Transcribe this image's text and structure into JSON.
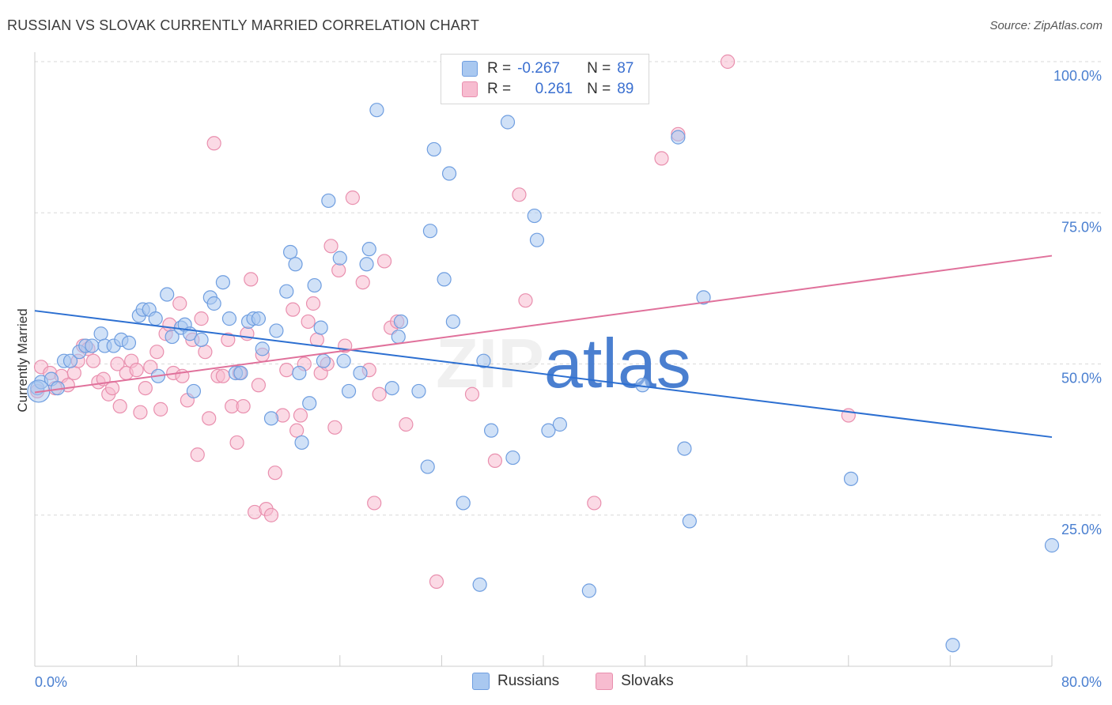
{
  "title": "RUSSIAN VS SLOVAK CURRENTLY MARRIED CORRELATION CHART",
  "source": "Source: ZipAtlas.com",
  "watermark": "ZIPatlas",
  "legend": {
    "russians": {
      "r_label": "R =",
      "r_value": "-0.267",
      "n_label": "N =",
      "n_value": "87"
    },
    "slovaks": {
      "r_label": "R =",
      "r_value": "0.261",
      "n_label": "N =",
      "n_value": "89"
    }
  },
  "colors": {
    "russians_fill": "#a9c8f0",
    "russians_stroke": "#6f9ee0",
    "russians_line": "#2c6fd1",
    "slovaks_fill": "#f7bcd0",
    "slovaks_stroke": "#e98fae",
    "slovaks_line": "#e0719b",
    "tick_text": "#4a7fd0"
  },
  "chart_data": {
    "type": "scatter",
    "xlabel": "",
    "ylabel": "Currently Married",
    "xlim": [
      0,
      80
    ],
    "ylim": [
      0,
      100
    ],
    "x_tick_labels": [
      "0.0%",
      "80.0%"
    ],
    "y_tick_labels": [
      "100.0%",
      "75.0%",
      "50.0%",
      "25.0%"
    ],
    "y_tick_values": [
      100,
      75,
      50,
      25
    ],
    "grid": "horizontal dashed",
    "legend_position": "top-center and bottom",
    "series": [
      {
        "name": "Russians",
        "trend": {
          "x": [
            0,
            80
          ],
          "y": [
            58.8,
            37.9
          ]
        },
        "points": [
          [
            0.2,
            46
          ],
          [
            0.5,
            47
          ],
          [
            1.3,
            47.5
          ],
          [
            1.8,
            46
          ],
          [
            2.3,
            50.5
          ],
          [
            2.8,
            50.5
          ],
          [
            3.5,
            52
          ],
          [
            4.0,
            53
          ],
          [
            4.5,
            53
          ],
          [
            5.2,
            55
          ],
          [
            5.5,
            53
          ],
          [
            6.2,
            53
          ],
          [
            6.8,
            54
          ],
          [
            7.4,
            53.5
          ],
          [
            8.2,
            58
          ],
          [
            8.5,
            59
          ],
          [
            9.0,
            59
          ],
          [
            9.5,
            57.5
          ],
          [
            9.7,
            48
          ],
          [
            10.4,
            61.5
          ],
          [
            10.8,
            54.5
          ],
          [
            11.5,
            56
          ],
          [
            11.8,
            56.5
          ],
          [
            12.2,
            55
          ],
          [
            12.5,
            45.5
          ],
          [
            13.1,
            54
          ],
          [
            13.8,
            61
          ],
          [
            14.1,
            60
          ],
          [
            14.8,
            63.5
          ],
          [
            15.3,
            57.5
          ],
          [
            15.8,
            48.5
          ],
          [
            16.2,
            48.5
          ],
          [
            16.8,
            57
          ],
          [
            17.2,
            57.5
          ],
          [
            17.6,
            57.5
          ],
          [
            17.9,
            52.5
          ],
          [
            18.6,
            41
          ],
          [
            19.0,
            55.5
          ],
          [
            19.8,
            62
          ],
          [
            20.1,
            68.5
          ],
          [
            20.5,
            66.5
          ],
          [
            20.8,
            48.5
          ],
          [
            21.0,
            37
          ],
          [
            21.6,
            43.5
          ],
          [
            22.0,
            63
          ],
          [
            22.5,
            56
          ],
          [
            22.7,
            50.5
          ],
          [
            23.1,
            77
          ],
          [
            24.0,
            67.5
          ],
          [
            24.3,
            50.5
          ],
          [
            24.7,
            45.5
          ],
          [
            25.6,
            48.5
          ],
          [
            26.1,
            66.5
          ],
          [
            26.3,
            69
          ],
          [
            26.9,
            92
          ],
          [
            28.1,
            46
          ],
          [
            28.6,
            54.5
          ],
          [
            28.8,
            57
          ],
          [
            30.2,
            45.5
          ],
          [
            31.1,
            72
          ],
          [
            30.9,
            33
          ],
          [
            31.4,
            85.5
          ],
          [
            32.2,
            64
          ],
          [
            32.6,
            81.5
          ],
          [
            32.9,
            57
          ],
          [
            33.7,
            27
          ],
          [
            35.0,
            13.5
          ],
          [
            35.3,
            50.5
          ],
          [
            35.9,
            39
          ],
          [
            37.2,
            90
          ],
          [
            37.6,
            34.5
          ],
          [
            39.3,
            74.5
          ],
          [
            39.5,
            70.5
          ],
          [
            40.4,
            39
          ],
          [
            41.3,
            40
          ],
          [
            43.6,
            12.5
          ],
          [
            47.8,
            46.5
          ],
          [
            50.6,
            87.5
          ],
          [
            51.1,
            36
          ],
          [
            51.5,
            24
          ],
          [
            52.6,
            61
          ],
          [
            64.2,
            31
          ],
          [
            72.2,
            3.5
          ],
          [
            80.0,
            20
          ]
        ]
      },
      {
        "name": "Slovaks",
        "trend": {
          "x": [
            0,
            80
          ],
          "y": [
            45.3,
            67.9
          ]
        },
        "points": [
          [
            0.2,
            45.5
          ],
          [
            0.5,
            49.5
          ],
          [
            1.2,
            48.5
          ],
          [
            1.6,
            46
          ],
          [
            2.1,
            48
          ],
          [
            2.6,
            46.5
          ],
          [
            3.1,
            48.5
          ],
          [
            3.4,
            50.5
          ],
          [
            3.8,
            53
          ],
          [
            4.2,
            52.5
          ],
          [
            4.6,
            50.5
          ],
          [
            5.0,
            47
          ],
          [
            5.4,
            47.5
          ],
          [
            5.8,
            45
          ],
          [
            6.1,
            46
          ],
          [
            6.5,
            50
          ],
          [
            6.7,
            43
          ],
          [
            7.2,
            48.5
          ],
          [
            7.6,
            50.5
          ],
          [
            8.0,
            49
          ],
          [
            8.3,
            42
          ],
          [
            8.7,
            46
          ],
          [
            9.1,
            49.5
          ],
          [
            9.6,
            52
          ],
          [
            9.9,
            42.5
          ],
          [
            10.3,
            55
          ],
          [
            10.6,
            56.5
          ],
          [
            10.9,
            48.5
          ],
          [
            11.4,
            60
          ],
          [
            11.6,
            48
          ],
          [
            12.0,
            44
          ],
          [
            12.4,
            54
          ],
          [
            12.8,
            35
          ],
          [
            13.1,
            57.5
          ],
          [
            13.4,
            52
          ],
          [
            13.7,
            41
          ],
          [
            14.1,
            86.5
          ],
          [
            14.4,
            48
          ],
          [
            14.8,
            48
          ],
          [
            15.2,
            54
          ],
          [
            15.5,
            43
          ],
          [
            15.9,
            37
          ],
          [
            16.1,
            48.5
          ],
          [
            16.4,
            43
          ],
          [
            16.7,
            55
          ],
          [
            17.0,
            64
          ],
          [
            17.3,
            25.5
          ],
          [
            17.6,
            46.5
          ],
          [
            17.9,
            51.5
          ],
          [
            18.2,
            26
          ],
          [
            18.6,
            25
          ],
          [
            18.9,
            32
          ],
          [
            19.5,
            41.5
          ],
          [
            19.8,
            49
          ],
          [
            20.3,
            59
          ],
          [
            20.6,
            39
          ],
          [
            20.9,
            41.5
          ],
          [
            21.2,
            50
          ],
          [
            21.5,
            57
          ],
          [
            21.9,
            60
          ],
          [
            22.2,
            54
          ],
          [
            22.5,
            48.5
          ],
          [
            23.0,
            50
          ],
          [
            23.3,
            69.5
          ],
          [
            23.6,
            39.5
          ],
          [
            23.9,
            65.5
          ],
          [
            24.4,
            53
          ],
          [
            25.0,
            77.5
          ],
          [
            25.8,
            63.5
          ],
          [
            26.3,
            49
          ],
          [
            26.7,
            27
          ],
          [
            27.1,
            45
          ],
          [
            27.5,
            67
          ],
          [
            28.0,
            56
          ],
          [
            28.5,
            57
          ],
          [
            29.2,
            40
          ],
          [
            31.6,
            14
          ],
          [
            34.4,
            45
          ],
          [
            36.2,
            34
          ],
          [
            38.1,
            78
          ],
          [
            38.6,
            60.5
          ],
          [
            44.0,
            27
          ],
          [
            49.3,
            84
          ],
          [
            50.6,
            88
          ],
          [
            54.5,
            100
          ],
          [
            64.0,
            41.5
          ]
        ]
      }
    ]
  }
}
